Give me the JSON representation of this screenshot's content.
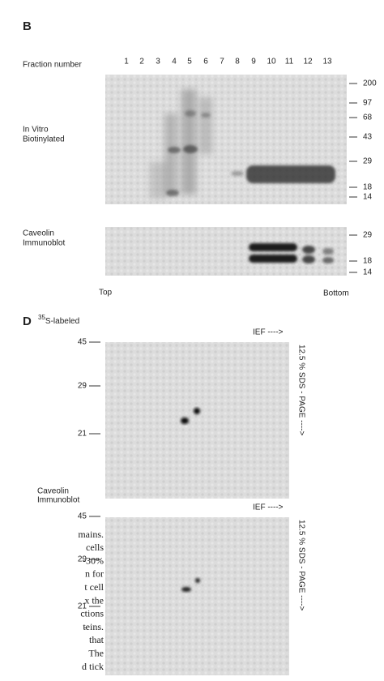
{
  "panel_b": {
    "label": "B",
    "fraction_header": "Fraction number",
    "fractions": [
      "1",
      "2",
      "3",
      "4",
      "5",
      "6",
      "7",
      "8",
      "9",
      "10",
      "11",
      "12",
      "13"
    ],
    "blots": [
      {
        "label_lines": [
          "In Vitro",
          "Biotinylated"
        ],
        "markers": [
          "200",
          "97",
          "68",
          "43",
          "29",
          "18",
          "14"
        ]
      },
      {
        "label_lines": [
          "Caveolin",
          "Immunoblot"
        ],
        "markers": [
          "29",
          "18",
          "14"
        ]
      }
    ],
    "top_label": "Top",
    "bottom_label": "Bottom"
  },
  "panel_d": {
    "label": "D",
    "blots": [
      {
        "label": {
          "superscript": "35",
          "text": "S-labeled"
        },
        "ief": "IEF ---->",
        "sds": "12.5 % SDS - PAGE ---->",
        "markers": [
          "45",
          "29",
          "21"
        ]
      },
      {
        "label_lines": [
          "Caveolin",
          "Immunoblot"
        ],
        "ief": "IEF ---->",
        "sds": "12.5 % SDS - PAGE ---->",
        "markers": [
          "45",
          "29",
          "21",
          "-"
        ]
      }
    ]
  },
  "caption_fragments": [
    "mains.",
    "cells",
    "-30%",
    "n for",
    "t cell",
    "x the",
    "ctions",
    "teins.",
    "that",
    "The",
    "d tick"
  ]
}
